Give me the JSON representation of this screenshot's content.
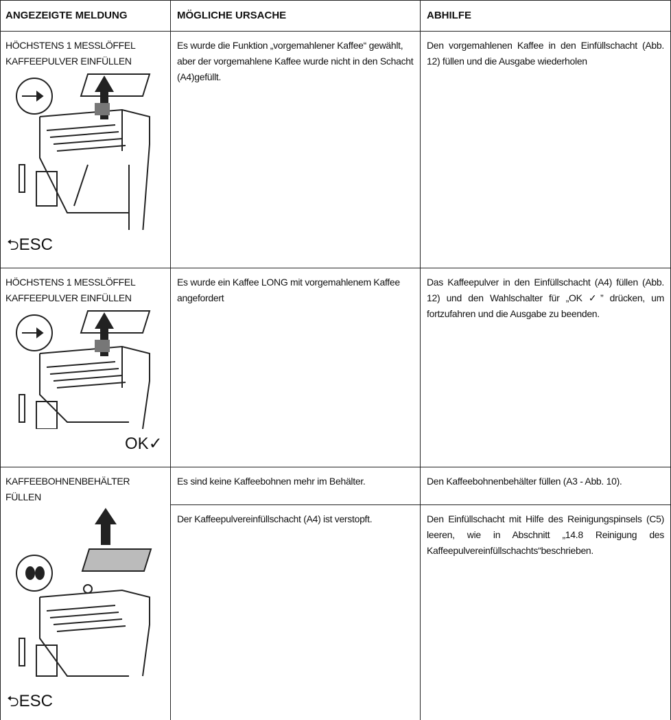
{
  "table": {
    "header": [
      "ANGEZEIGTE MELDUNG",
      "MÖGLICHE URSACHE",
      "ABHILFE"
    ],
    "rows": [
      {
        "message": "HÖCHSTENS 1 MESSLÖFFEL KAFFEEPULVER EINFÜLLEN",
        "button": "ESC",
        "causes": [
          {
            "cause": "Es wurde die Funktion „vorgemahlener Kaffee“ gewählt, aber der vorgemahlene Kaffee wurde nicht in den Schacht (A4)gefüllt.",
            "remedy": "Den vorgemahlenen Kaffee in den Einfüllschacht (Abb. 12) füllen und die Ausgabe wiederholen"
          }
        ]
      },
      {
        "message": "HÖCHSTENS 1 MESSLÖFFEL KAFFEEPULVER EINFÜLLEN",
        "button": "OK✓",
        "causes": [
          {
            "cause": "Es wurde ein Kaffee LONG mit vorgemahlenem Kaffee angefordert",
            "remedy": "Das Kaffeepulver in den Einfüllschacht (A4) füllen (Abb. 12) und den Wahlschalter für „OK ✓” drücken, um fortzufahren und die Ausgabe zu beenden."
          }
        ]
      },
      {
        "message": "KAFFEEBOHNENBEHÄLTER FÜLLEN",
        "button": "ESC",
        "causes": [
          {
            "cause": "Es sind keine Kaffeebohnen mehr im Behälter.",
            "remedy": "Den Kaffeebohnenbehälter füllen (A3 - Abb. 10)."
          },
          {
            "cause": "Der Kaffeepulvereinfüllschacht (A4) ist verstopft.",
            "remedy": "Den Einfüllschacht mit Hilfe des Reinigungspinsels (C5) leeren, wie in Abschnitt „14.8 Reinigung des Kaffeepulvereinfüllschachts“beschrieben."
          }
        ]
      }
    ]
  }
}
